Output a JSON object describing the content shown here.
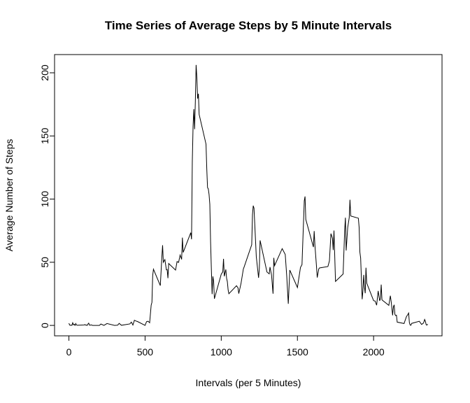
{
  "chart_data": {
    "type": "line",
    "title": "Time Series of Average Steps by 5 Minute Intervals",
    "xlabel": "Intervals (per 5 Minutes)",
    "ylabel": "Average Number of Steps",
    "color": "#000000",
    "x": [
      0,
      5,
      10,
      15,
      20,
      25,
      30,
      35,
      40,
      45,
      50,
      55,
      100,
      105,
      110,
      115,
      120,
      125,
      130,
      135,
      140,
      145,
      150,
      155,
      200,
      210,
      230,
      250,
      300,
      320,
      330,
      345,
      400,
      410,
      420,
      430,
      440,
      450,
      500,
      505,
      510,
      520,
      530,
      540,
      545,
      550,
      555,
      600,
      610,
      615,
      620,
      630,
      640,
      645,
      650,
      655,
      700,
      710,
      720,
      730,
      740,
      745,
      750,
      800,
      805,
      810,
      815,
      820,
      825,
      830,
      835,
      840,
      845,
      850,
      855,
      900,
      905,
      910,
      915,
      920,
      925,
      930,
      935,
      940,
      945,
      950,
      955,
      1000,
      1010,
      1015,
      1020,
      1030,
      1035,
      1040,
      1045,
      1050,
      1100,
      1110,
      1115,
      1130,
      1145,
      1150,
      1200,
      1205,
      1210,
      1215,
      1230,
      1245,
      1250,
      1255,
      1300,
      1315,
      1320,
      1330,
      1340,
      1345,
      1350,
      1400,
      1420,
      1430,
      1440,
      1450,
      1500,
      1520,
      1530,
      1545,
      1550,
      1555,
      1605,
      1610,
      1615,
      1625,
      1630,
      1640,
      1645,
      1700,
      1710,
      1720,
      1730,
      1735,
      1740,
      1750,
      1800,
      1810,
      1815,
      1820,
      1830,
      1840,
      1845,
      1850,
      1900,
      1905,
      1910,
      1915,
      1925,
      1930,
      1935,
      1940,
      1945,
      1950,
      1955,
      2000,
      2010,
      2020,
      2030,
      2040,
      2045,
      2050,
      2055,
      2100,
      2110,
      2115,
      2125,
      2130,
      2135,
      2140,
      2145,
      2150,
      2155,
      2200,
      2215,
      2225,
      2230,
      2235,
      2240,
      2245,
      2250,
      2300,
      2315,
      2325,
      2330,
      2335,
      2340,
      2345,
      2350,
      2355
    ],
    "values": [
      1.7,
      0.3,
      0.1,
      0.2,
      0.1,
      2.1,
      0.5,
      0.9,
      0,
      1.5,
      0.3,
      0.1,
      0.3,
      0.7,
      0.2,
      0.3,
      0,
      1.1,
      1.8,
      0.2,
      0.2,
      0.4,
      0.3,
      0,
      0,
      1.1,
      0,
      1.5,
      0,
      0.2,
      1.6,
      0.1,
      1.2,
      2.6,
      0.3,
      4.1,
      3.5,
      3.1,
      0,
      1.6,
      3,
      3.3,
      2.1,
      16,
      18.3,
      39.5,
      44.5,
      31.5,
      53.8,
      63.5,
      50,
      52.1,
      44,
      44.2,
      37.4,
      49,
      43.8,
      50.5,
      49.9,
      55.7,
      52.3,
      69.5,
      57.8,
      73.4,
      68.2,
      129.4,
      157.5,
      171.2,
      155.4,
      177.3,
      206.2,
      195.9,
      179.6,
      183.4,
      167,
      143.5,
      124,
      109.1,
      108.1,
      103.7,
      95.9,
      66.2,
      45.2,
      24.8,
      38.8,
      35,
      21.1,
      40.6,
      42.4,
      52.7,
      38.9,
      44.3,
      37.4,
      34.7,
      28.3,
      25.1,
      31.4,
      29.7,
      25.2,
      33.4,
      44.6,
      46.2,
      63.9,
      87.6,
      94.8,
      92.8,
      54.5,
      37.7,
      45,
      67.3,
      42.3,
      40.8,
      46.2,
      40,
      25.1,
      53.5,
      47.3,
      60.8,
      56.2,
      38.8,
      17.1,
      43.8,
      30,
      45.9,
      48.1,
      98.6,
      102.1,
      83.9,
      62,
      74.7,
      63.2,
      47.1,
      37.9,
      44.7,
      45.5,
      46.6,
      51,
      72.7,
      68.9,
      59.7,
      75.1,
      34.8,
      40.7,
      74.7,
      85.3,
      59.3,
      77.4,
      85.3,
      99.5,
      86.6,
      84.9,
      77.8,
      58,
      53.4,
      20.7,
      27.4,
      40,
      30.2,
      25.5,
      45.7,
      33.5,
      19.6,
      19.3,
      16,
      27.3,
      19.5,
      21.3,
      32.3,
      20.2,
      15.9,
      23.5,
      19.2,
      8,
      14.7,
      16.3,
      8.7,
      7.8,
      8.1,
      2.6,
      1.5,
      6.8,
      8.7,
      9.8,
      2.2,
      0.3,
      0.1,
      1.6,
      3.3,
      0.8,
      1.6,
      2.6,
      4.7,
      3.3,
      0.6,
      0.2,
      1.1
    ],
    "xlim": [
      -94.2,
      2449.2
    ],
    "ylim": [
      -8.25,
      214.42
    ],
    "xticks": [
      0,
      500,
      1000,
      1500,
      2000
    ],
    "yticks": [
      0,
      50,
      100,
      150,
      200
    ]
  }
}
